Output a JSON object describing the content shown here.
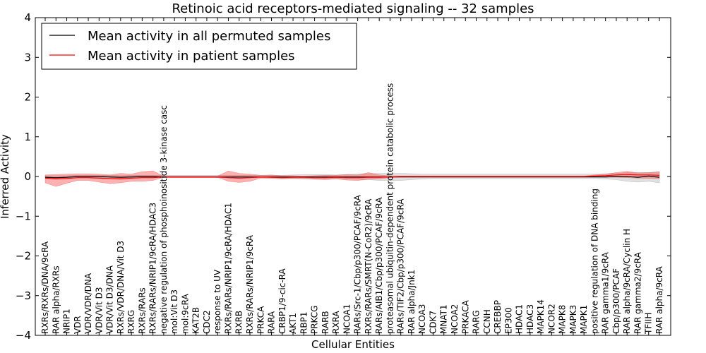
{
  "chart_data": {
    "type": "line",
    "title": "Retinoic acid receptors-mediated signaling -- 32 samples",
    "xlabel": "Cellular Entities",
    "ylabel": "Inferred Activity",
    "ylim": [
      -4,
      4
    ],
    "yticks": [
      "−4",
      "−3",
      "−2",
      "−1",
      "0",
      "1",
      "2",
      "3",
      "4"
    ],
    "grid": false,
    "legend_position": "top-left",
    "categories": [
      "RXRs/RXRs/DNA/9cRA",
      "RAR alpha/RXRs",
      "NRIP1",
      "VDR",
      "VDR/VDR/DNA",
      "VDR/Vit D3",
      "VDR/Vit D3/DNA",
      "RXRs/VDR/DNA/Vit D3",
      "RXRG",
      "RXRs/RARs",
      "RXRs/RARs/NRIP1/9cRA/HDAC3",
      "negative regulation of phosphoinositide 3-kinase casc",
      "mol:Vit D3",
      "mol:9cRA",
      "KAT2B",
      "CDC2",
      "response to UV",
      "RXRs/RARs/NRIP1/9cRA/HDAC1",
      "RXRB",
      "RXRs/RARs/NRIP1/9cRA",
      "PRKCA",
      "RARA",
      "CRBP1/9-cic-RA",
      "AKT1",
      "RBP1",
      "PRKCG",
      "RARB",
      "RXRA",
      "NCOA1",
      "RARs/Src-1/Cbp/p300/PCAF/9cRA",
      "RXRs/RARs/SMRT(N-CoR2)/9cRA",
      "RARs/AIB1/Cbp/p300/PCAF/9cRA",
      "proteasomal ubiquitin-dependent protein catabolic process",
      "RARs/TIF2/Cbp/p300/PCAF/9cRA",
      "RAR alpha/Jnk1",
      "NCOA3",
      "CDK7",
      "MNAT1",
      "NCOA2",
      "PRKACA",
      "RARG",
      "CCNH",
      "CREBBP",
      "EP300",
      "HDAC1",
      "HDAC3",
      "MAPK14",
      "NCOR2",
      "MAPK8",
      "MAPK3",
      "MAPK1",
      "positive regulation of DNA binding",
      "RAR gamma1/9cRA",
      "Cbp/p300/PCAF",
      "RAR alpha/9cRA/Cyclin H",
      "RAR gamma2/9cRA",
      "TFIIH",
      "RAR alpha/9cRA"
    ],
    "series": [
      {
        "name": "Mean activity in all permuted samples",
        "color": "#000000",
        "values": [
          -0.02,
          -0.03,
          -0.02,
          0.0,
          0.0,
          0.0,
          -0.01,
          -0.02,
          -0.01,
          0.0,
          0.0,
          -0.01,
          -0.01,
          -0.01,
          -0.01,
          -0.01,
          -0.01,
          -0.01,
          -0.01,
          -0.01,
          -0.01,
          -0.01,
          -0.01,
          -0.01,
          -0.01,
          -0.01,
          -0.01,
          -0.01,
          -0.01,
          -0.01,
          -0.01,
          -0.01,
          -0.01,
          -0.01,
          -0.01,
          -0.01,
          -0.01,
          -0.01,
          -0.01,
          -0.01,
          -0.01,
          -0.01,
          -0.01,
          -0.01,
          -0.01,
          -0.01,
          -0.01,
          -0.01,
          -0.01,
          -0.01,
          -0.01,
          -0.01,
          -0.01,
          0.0,
          0.0,
          -0.02,
          0.01,
          -0.02
        ],
        "lower": [
          -0.04,
          -0.04,
          -0.04,
          -0.03,
          -0.03,
          -0.03,
          -0.03,
          -0.04,
          -0.03,
          -0.03,
          -0.03,
          -0.03,
          -0.03,
          -0.03,
          -0.03,
          -0.03,
          -0.03,
          -0.03,
          -0.03,
          -0.03,
          -0.03,
          -0.03,
          -0.04,
          -0.05,
          -0.06,
          -0.06,
          -0.06,
          -0.05,
          -0.06,
          -0.07,
          -0.08,
          -0.1,
          -0.1,
          -0.1,
          -0.08,
          -0.06,
          -0.05,
          -0.05,
          -0.05,
          -0.05,
          -0.05,
          -0.05,
          -0.05,
          -0.05,
          -0.05,
          -0.05,
          -0.05,
          -0.05,
          -0.05,
          -0.05,
          -0.05,
          -0.05,
          -0.06,
          -0.08,
          -0.12,
          -0.14,
          -0.12,
          -0.16
        ],
        "upper": [
          0.02,
          0.02,
          0.02,
          0.03,
          0.03,
          0.03,
          0.03,
          0.02,
          0.03,
          0.03,
          0.03,
          0.03,
          0.03,
          0.03,
          0.03,
          0.03,
          0.03,
          0.03,
          0.03,
          0.03,
          0.03,
          0.03,
          0.03,
          0.04,
          0.05,
          0.05,
          0.05,
          0.04,
          0.05,
          0.06,
          0.07,
          0.08,
          0.08,
          0.08,
          0.07,
          0.06,
          0.06,
          0.06,
          0.06,
          0.06,
          0.06,
          0.06,
          0.06,
          0.06,
          0.06,
          0.06,
          0.06,
          0.06,
          0.06,
          0.06,
          0.06,
          0.06,
          0.07,
          0.08,
          0.1,
          0.1,
          0.1,
          0.12
        ]
      },
      {
        "name": "Mean activity in patient samples",
        "color": "#ff0000",
        "values": [
          -0.04,
          -0.06,
          -0.05,
          -0.03,
          -0.03,
          -0.04,
          -0.05,
          -0.06,
          -0.04,
          -0.03,
          -0.03,
          -0.01,
          -0.01,
          -0.01,
          -0.01,
          -0.01,
          -0.01,
          -0.03,
          -0.04,
          -0.03,
          -0.01,
          -0.02,
          -0.03,
          -0.02,
          -0.02,
          -0.03,
          -0.03,
          -0.02,
          -0.03,
          -0.03,
          -0.02,
          -0.02,
          -0.01,
          0.0,
          0.0,
          0.0,
          0.0,
          0.0,
          0.0,
          0.0,
          0.0,
          0.0,
          0.0,
          0.0,
          0.0,
          0.0,
          0.0,
          0.0,
          0.0,
          0.0,
          0.0,
          0.01,
          0.02,
          0.04,
          0.05,
          0.04,
          0.04,
          0.03
        ],
        "lower": [
          -0.16,
          -0.25,
          -0.17,
          -0.1,
          -0.1,
          -0.14,
          -0.18,
          -0.16,
          -0.12,
          -0.12,
          -0.1,
          -0.02,
          -0.02,
          -0.02,
          -0.02,
          -0.02,
          -0.02,
          -0.12,
          -0.15,
          -0.12,
          -0.04,
          -0.05,
          -0.06,
          -0.05,
          -0.05,
          -0.07,
          -0.08,
          -0.06,
          -0.09,
          -0.1,
          -0.07,
          -0.06,
          -0.03,
          -0.01,
          -0.01,
          -0.01,
          -0.01,
          -0.01,
          -0.01,
          -0.01,
          -0.01,
          -0.01,
          -0.01,
          -0.01,
          -0.01,
          -0.01,
          -0.01,
          -0.01,
          -0.01,
          -0.01,
          -0.01,
          -0.01,
          -0.02,
          -0.02,
          -0.03,
          -0.04,
          -0.05,
          -0.05
        ],
        "upper": [
          0.04,
          0.05,
          0.06,
          0.07,
          0.07,
          0.06,
          0.04,
          0.08,
          0.06,
          0.12,
          0.14,
          0.01,
          0.01,
          0.01,
          0.01,
          0.01,
          0.01,
          0.14,
          0.08,
          0.06,
          0.03,
          0.04,
          0.02,
          0.02,
          0.01,
          0.02,
          0.03,
          0.03,
          0.05,
          0.04,
          0.1,
          0.04,
          0.02,
          0.01,
          0.01,
          0.01,
          0.01,
          0.01,
          0.01,
          0.01,
          0.01,
          0.01,
          0.01,
          0.01,
          0.01,
          0.01,
          0.01,
          0.01,
          0.01,
          0.01,
          0.01,
          0.04,
          0.06,
          0.1,
          0.13,
          0.09,
          0.1,
          0.12
        ]
      }
    ]
  }
}
